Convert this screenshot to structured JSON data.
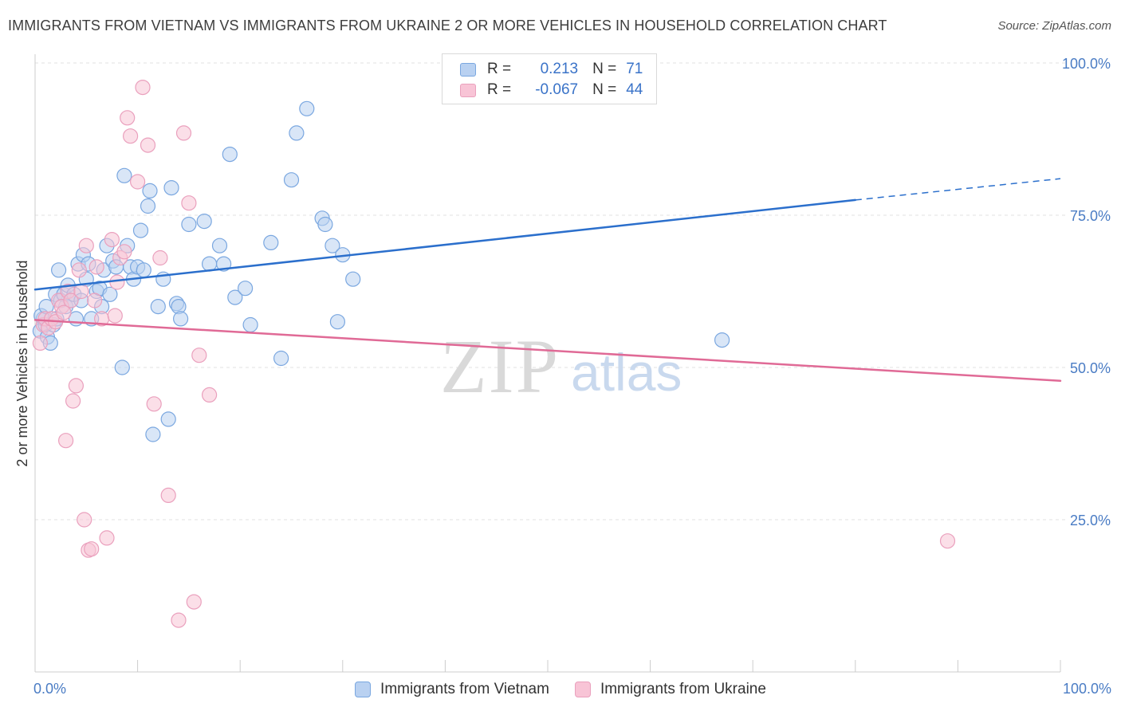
{
  "chart_data": {
    "type": "scatter",
    "title": "IMMIGRANTS FROM VIETNAM VS IMMIGRANTS FROM UKRAINE 2 OR MORE VEHICLES IN HOUSEHOLD CORRELATION CHART",
    "source": "Source: ZipAtlas.com",
    "ylabel": "2 or more Vehicles in Household",
    "xlim": [
      0,
      100
    ],
    "ylim": [
      0,
      100
    ],
    "x_tick_labels": {
      "min": "0.0%",
      "max": "100.0%"
    },
    "y_ticks": [
      {
        "value": 100,
        "label": "100.0%"
      },
      {
        "value": 75,
        "label": "75.0%"
      },
      {
        "value": 50,
        "label": "50.0%"
      },
      {
        "value": 25,
        "label": "25.0%"
      }
    ],
    "watermark": {
      "zip": "ZIP",
      "atlas": "atlas"
    },
    "legend": {
      "rows": [
        {
          "r_label": "R =",
          "r_value": "0.213",
          "n_label": "N =",
          "n_value": "71"
        },
        {
          "r_label": "R =",
          "r_value": "-0.067",
          "n_label": "N =",
          "n_value": "44"
        }
      ]
    },
    "series": [
      {
        "name": "Immigrants from Vietnam",
        "color": "#7aa7e0",
        "fill": "#b9d1f1",
        "line_color": "#2b6fcc",
        "trend": {
          "x0": 0,
          "y0": 62.8,
          "x1": 80,
          "y1": 77.5,
          "dash_to_x": 100,
          "dash_to_y": 81.0
        },
        "points": [
          [
            0.5,
            56
          ],
          [
            0.8,
            58
          ],
          [
            1,
            57
          ],
          [
            1.2,
            55
          ],
          [
            1.5,
            54
          ],
          [
            1.8,
            57
          ],
          [
            2,
            62
          ],
          [
            2.3,
            66
          ],
          [
            2.5,
            61
          ],
          [
            2.8,
            62
          ],
          [
            3,
            60
          ],
          [
            3.2,
            63.5
          ],
          [
            3.5,
            61
          ],
          [
            3.8,
            62
          ],
          [
            4,
            58
          ],
          [
            4.2,
            67
          ],
          [
            4.5,
            61
          ],
          [
            4.7,
            68.5
          ],
          [
            5,
            64.5
          ],
          [
            5.2,
            67
          ],
          [
            5.5,
            58
          ],
          [
            6,
            62.5
          ],
          [
            6.3,
            63
          ],
          [
            6.5,
            60
          ],
          [
            6.7,
            66
          ],
          [
            7,
            70
          ],
          [
            7.3,
            62
          ],
          [
            7.6,
            67.5
          ],
          [
            7.9,
            66.5
          ],
          [
            8.5,
            50
          ],
          [
            8.7,
            81.5
          ],
          [
            9,
            70
          ],
          [
            9.3,
            66.5
          ],
          [
            9.6,
            64.5
          ],
          [
            10,
            66.5
          ],
          [
            10.3,
            72.5
          ],
          [
            10.6,
            66
          ],
          [
            11,
            76.5
          ],
          [
            11.2,
            79
          ],
          [
            11.5,
            39
          ],
          [
            12,
            60
          ],
          [
            12.5,
            64.5
          ],
          [
            13,
            41.5
          ],
          [
            13.3,
            79.5
          ],
          [
            13.8,
            60.5
          ],
          [
            14,
            60
          ],
          [
            14.2,
            58
          ],
          [
            15,
            73.5
          ],
          [
            16.5,
            74
          ],
          [
            17,
            67
          ],
          [
            18,
            70
          ],
          [
            18.4,
            67
          ],
          [
            19,
            85
          ],
          [
            19.5,
            61.5
          ],
          [
            20.5,
            63
          ],
          [
            21,
            57
          ],
          [
            23,
            70.5
          ],
          [
            24,
            51.5
          ],
          [
            25,
            80.8
          ],
          [
            25.5,
            88.5
          ],
          [
            26.5,
            92.5
          ],
          [
            28,
            74.5
          ],
          [
            28.3,
            73.5
          ],
          [
            29,
            70
          ],
          [
            29.5,
            57.5
          ],
          [
            30,
            68.5
          ],
          [
            31,
            64.5
          ],
          [
            67,
            54.5
          ],
          [
            0.6,
            58.5
          ],
          [
            1.1,
            60
          ],
          [
            2.1,
            58
          ]
        ]
      },
      {
        "name": "Immigrants from Ukraine",
        "color": "#eaa0bd",
        "fill": "#f8c4d6",
        "line_color": "#e06a96",
        "trend": {
          "x0": 0,
          "y0": 57.8,
          "x1": 100,
          "y1": 47.8
        },
        "points": [
          [
            0.5,
            54
          ],
          [
            0.8,
            57
          ],
          [
            1,
            58
          ],
          [
            1.3,
            56.5
          ],
          [
            1.6,
            58
          ],
          [
            2,
            57.5
          ],
          [
            2.3,
            61
          ],
          [
            2.6,
            60
          ],
          [
            3,
            38
          ],
          [
            3.2,
            62.5
          ],
          [
            3.5,
            61
          ],
          [
            3.7,
            44.5
          ],
          [
            4,
            47
          ],
          [
            4.3,
            66
          ],
          [
            4.5,
            62.5
          ],
          [
            4.8,
            25
          ],
          [
            5,
            70
          ],
          [
            5.2,
            20
          ],
          [
            5.5,
            20.2
          ],
          [
            5.8,
            61
          ],
          [
            6,
            66.5
          ],
          [
            6.5,
            58
          ],
          [
            7,
            22
          ],
          [
            7.5,
            71
          ],
          [
            7.8,
            58.5
          ],
          [
            8,
            64
          ],
          [
            8.3,
            68
          ],
          [
            8.7,
            69
          ],
          [
            9,
            91
          ],
          [
            9.3,
            88
          ],
          [
            10,
            80.5
          ],
          [
            10.5,
            96
          ],
          [
            11,
            86.5
          ],
          [
            11.6,
            44
          ],
          [
            12.2,
            68
          ],
          [
            13,
            29
          ],
          [
            14,
            8.5
          ],
          [
            14.5,
            88.5
          ],
          [
            15,
            77
          ],
          [
            15.5,
            11.5
          ],
          [
            16,
            52
          ],
          [
            17,
            45.5
          ],
          [
            89,
            21.5
          ],
          [
            2.8,
            59
          ]
        ]
      }
    ]
  }
}
